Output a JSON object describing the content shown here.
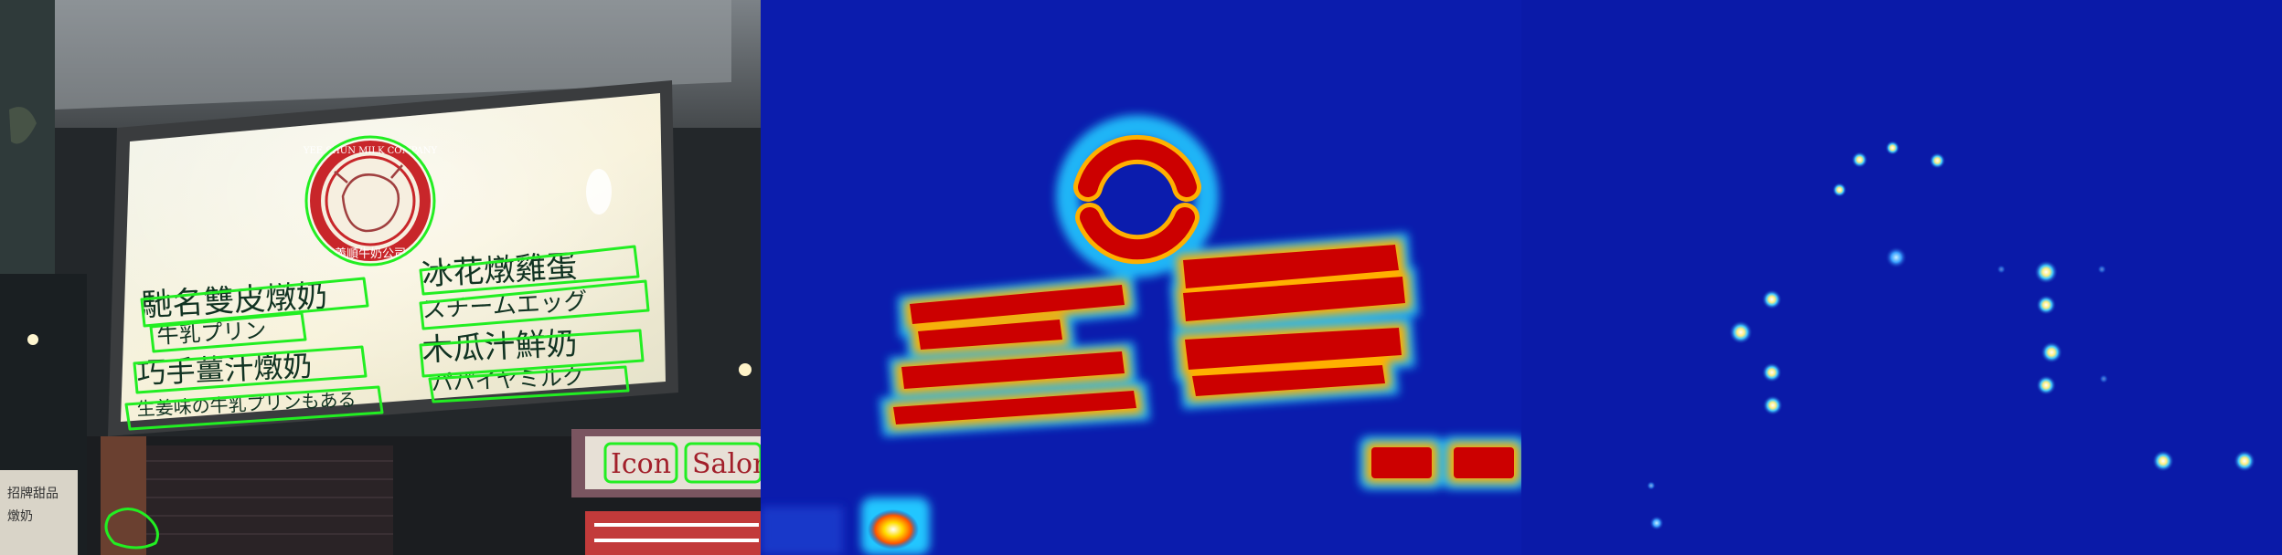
{
  "panels": [
    {
      "id": "photo-with-detections"
    },
    {
      "id": "region-heatmap"
    },
    {
      "id": "center-point-heatmap"
    }
  ],
  "sign": {
    "lines_left": [
      "馳名雙皮燉奶",
      "牛乳プリン",
      "巧手薑汁燉奶",
      "生姜味の牛乳プリンもある"
    ],
    "lines_right": [
      "冰花燉雞蛋",
      "スチームエッグ",
      "木瓜汁鮮奶",
      "パパイヤミルク"
    ],
    "logo_ring_text": "YEE SHUN MILK COMPANY",
    "logo_chinese": "義順牛奶公司",
    "shop_text": [
      "Icon",
      "Salon"
    ],
    "small_sign_text": [
      "招牌甜品",
      "燉奶"
    ]
  },
  "colors": {
    "detection_outline": "#22ee22",
    "heat_background": "#0a1aa8",
    "heat_high": "#cc0000",
    "heat_mid": "#ffcc00",
    "point_glow": "#ffffff"
  }
}
